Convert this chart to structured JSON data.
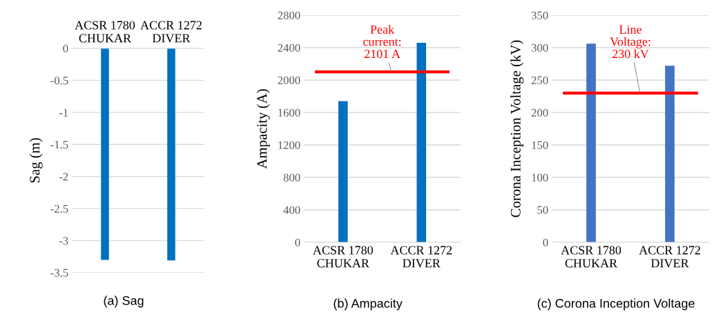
{
  "chart_data": [
    {
      "type": "bar",
      "title": "(a) Sag",
      "ylabel": "Sag (m)",
      "categories": [
        "ACSR 1780\nCHUKAR",
        "ACCR 1272\nDIVER"
      ],
      "values": [
        -3.3,
        -3.31
      ],
      "color": "#0070c0",
      "ylim": [
        -3.5,
        0
      ],
      "yticks": [
        0,
        -0.5,
        -1,
        -1.5,
        -2,
        -2.5,
        -3,
        -3.5
      ],
      "grid": "y"
    },
    {
      "type": "bar",
      "title": "(b) Ampacity",
      "ylabel": "Ampacity (A)",
      "categories": [
        "ACSR 1780\nCHUKAR",
        "ACCR 1272\nDIVER"
      ],
      "values": [
        1740,
        2460
      ],
      "color": "#0070c0",
      "ylim": [
        0,
        2800
      ],
      "yticks": [
        0,
        400,
        800,
        1200,
        1600,
        2000,
        2400,
        2800
      ],
      "grid": "y",
      "ref_lines": [
        {
          "axis": "y",
          "value": 2101,
          "label": "Peak\ncurrent:\n2101 A",
          "color": "#ff0000"
        }
      ]
    },
    {
      "type": "bar",
      "title": "(c) Corona Inception Voltage",
      "ylabel": "Corona Inception Voltage (kV)",
      "categories": [
        "ACSR 1780\nCHUKAR",
        "ACCR 1272\nDIVER"
      ],
      "values": [
        306,
        272
      ],
      "color": "#4472c4",
      "ylim": [
        0,
        350
      ],
      "yticks": [
        0,
        50,
        100,
        150,
        200,
        250,
        300,
        350
      ],
      "grid": "y",
      "ref_lines": [
        {
          "axis": "y",
          "value": 230,
          "label": "Line\nVoltage:\n230 kV",
          "color": "#ff0000"
        }
      ]
    }
  ]
}
